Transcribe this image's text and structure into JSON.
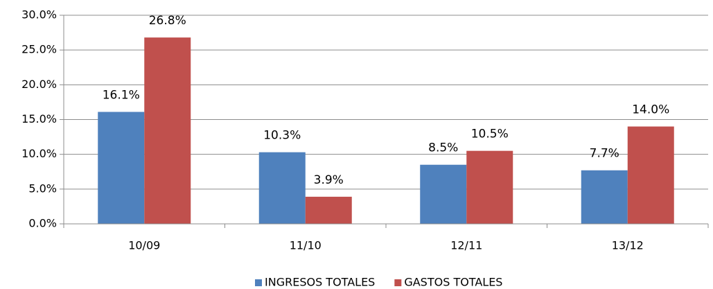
{
  "chart_data": {
    "type": "bar",
    "categories": [
      "10/09",
      "11/10",
      "12/11",
      "13/12"
    ],
    "series": [
      {
        "name": "INGRESOS TOTALES",
        "color": "#4f81bd",
        "values": [
          16.1,
          10.3,
          8.5,
          7.7
        ],
        "value_labels": [
          "16.1%",
          "10.3%",
          "8.5%",
          "7.7%"
        ]
      },
      {
        "name": "GASTOS TOTALES",
        "color": "#c0504d",
        "values": [
          26.8,
          3.9,
          10.5,
          14.0
        ],
        "value_labels": [
          "26.8%",
          "3.9%",
          "10.5%",
          "14.0%"
        ]
      }
    ],
    "ylim": [
      0,
      30
    ],
    "yticks": [
      {
        "value": 0,
        "label": "0.0%"
      },
      {
        "value": 5,
        "label": "5.0%"
      },
      {
        "value": 10,
        "label": "10.0%"
      },
      {
        "value": 15,
        "label": "15.0%"
      },
      {
        "value": 20,
        "label": "20.0%"
      },
      {
        "value": 25,
        "label": "25.0%"
      },
      {
        "value": 30,
        "label": "30.0%"
      }
    ],
    "grid": true,
    "legend": "bottom"
  }
}
